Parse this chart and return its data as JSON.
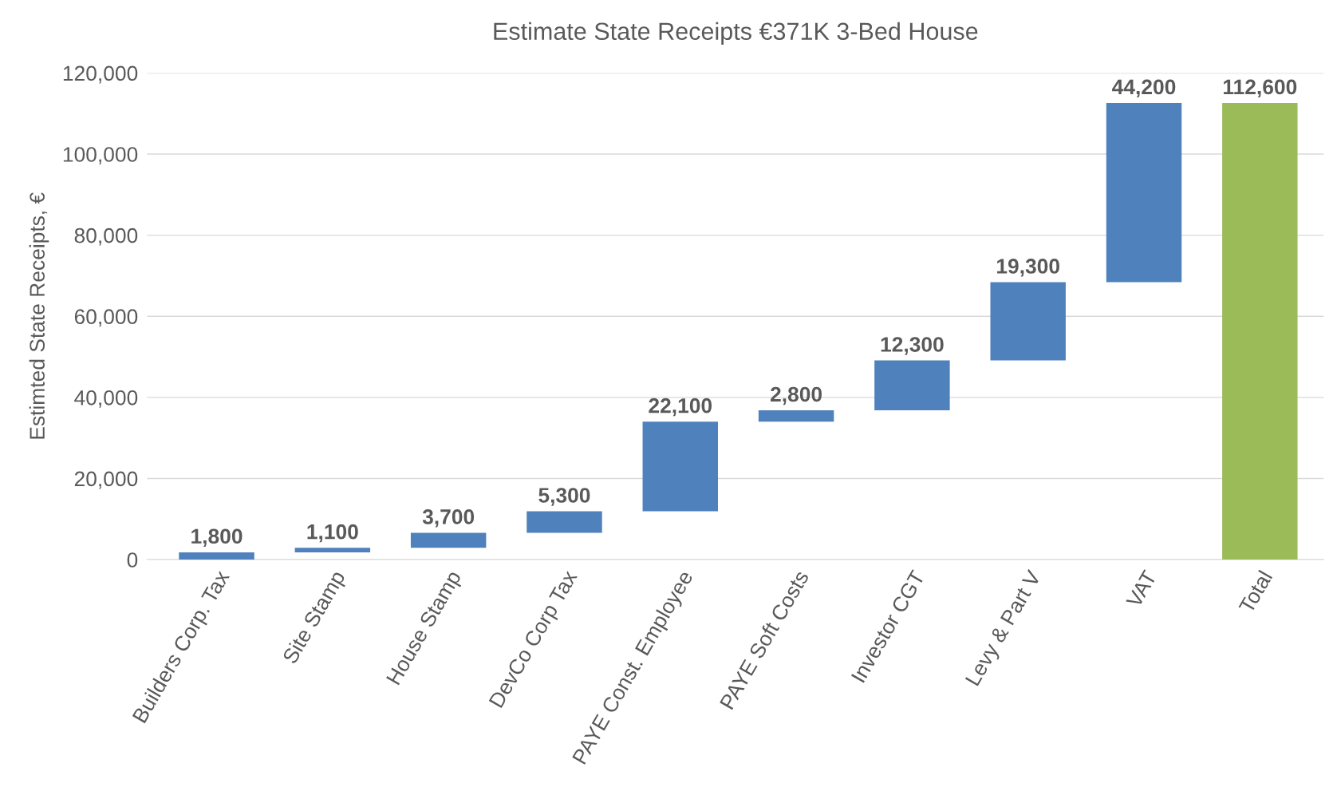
{
  "chart_data": {
    "type": "bar",
    "title": "Estimate State Receipts €371K 3-Bed House",
    "ylabel": "Estimted State Receipts, €",
    "categories": [
      "Builders Corp. Tax",
      "Site Stamp",
      "House Stamp",
      "DevCo Corp Tax",
      "PAYE Const. Employee",
      "PAYE Soft Costs",
      "Investor CGT",
      "Levy & Part V",
      "VAT",
      "Total"
    ],
    "values": [
      1800,
      1100,
      3700,
      5300,
      22100,
      2800,
      12300,
      19300,
      44200,
      112600
    ],
    "base": [
      0,
      1800,
      2900,
      6600,
      11900,
      34000,
      36800,
      49100,
      68400,
      0
    ],
    "colors": [
      "#4f81bd",
      "#4f81bd",
      "#4f81bd",
      "#4f81bd",
      "#4f81bd",
      "#4f81bd",
      "#4f81bd",
      "#4f81bd",
      "#4f81bd",
      "#9bbb59"
    ],
    "value_labels": [
      "1,800",
      "1,100",
      "3,700",
      "5,300",
      "22,100",
      "2,800",
      "12,300",
      "19,300",
      "44,200",
      "112,600"
    ],
    "ylim": [
      0,
      120000
    ],
    "yticks": [
      {
        "value": 0,
        "label": "0"
      },
      {
        "value": 20000,
        "label": "20,000"
      },
      {
        "value": 40000,
        "label": "40,000"
      },
      {
        "value": 60000,
        "label": "60,000"
      },
      {
        "value": 80000,
        "label": "80,000"
      },
      {
        "value": 100000,
        "label": "100,000"
      },
      {
        "value": 120000,
        "label": "120,000"
      }
    ],
    "grid": "y",
    "legend": false
  }
}
